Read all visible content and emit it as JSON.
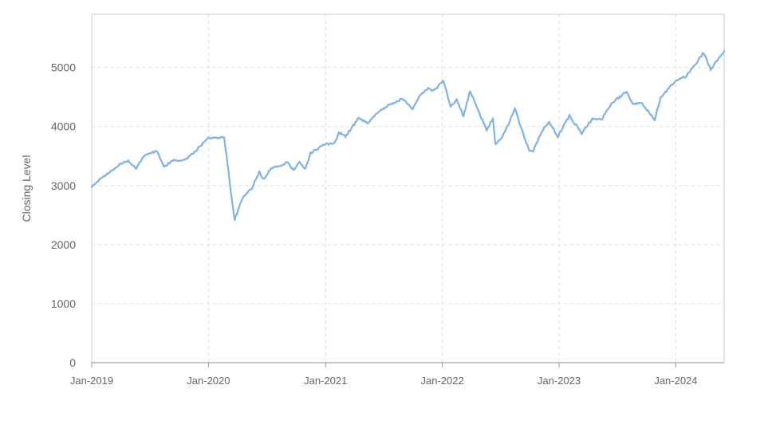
{
  "chart_data": {
    "type": "line",
    "title": "",
    "xlabel": "",
    "ylabel": "Closing Level",
    "xlim": [
      "2019-01-01",
      "2024-05-31"
    ],
    "ylim": [
      0,
      5900
    ],
    "x_ticks": [
      "Jan-2019",
      "Jan-2020",
      "Jan-2021",
      "Jan-2022",
      "Jan-2023",
      "Jan-2024"
    ],
    "y_ticks": [
      "0",
      "1000",
      "2000",
      "3000",
      "4000",
      "5000"
    ],
    "grid": true,
    "legend": "none",
    "line_color": "#7fb2e5",
    "series": [
      {
        "x": [
          "2019-01-01",
          "2019-01-25",
          "2019-02-25",
          "2019-03-25",
          "2019-04-25",
          "2019-05-20",
          "2019-06-15",
          "2019-07-25",
          "2019-08-15",
          "2019-09-15",
          "2019-10-15",
          "2019-11-20",
          "2019-12-31",
          "2020-02-19",
          "2020-03-01",
          "2020-03-10",
          "2020-03-23",
          "2020-04-15",
          "2020-05-15",
          "2020-06-08",
          "2020-06-20",
          "2020-07-15",
          "2020-08-20",
          "2020-09-02",
          "2020-09-23",
          "2020-10-12",
          "2020-10-30",
          "2020-11-15",
          "2020-12-31",
          "2021-01-29",
          "2021-02-12",
          "2021-03-04",
          "2021-04-15",
          "2021-05-12",
          "2021-06-15",
          "2021-07-15",
          "2021-08-30",
          "2021-09-30",
          "2021-10-20",
          "2021-11-18",
          "2021-12-01",
          "2021-12-15",
          "2022-01-03",
          "2022-01-27",
          "2022-02-15",
          "2022-03-08",
          "2022-03-29",
          "2022-04-15",
          "2022-05-20",
          "2022-06-08",
          "2022-06-16",
          "2022-07-15",
          "2022-08-16",
          "2022-09-10",
          "2022-09-30",
          "2022-10-12",
          "2022-11-15",
          "2022-12-01",
          "2022-12-28",
          "2023-02-02",
          "2023-03-13",
          "2023-04-15",
          "2023-05-15",
          "2023-06-15",
          "2023-07-31",
          "2023-08-20",
          "2023-09-15",
          "2023-10-27",
          "2023-11-15",
          "2023-12-31",
          "2024-01-31",
          "2024-03-28",
          "2024-04-19",
          "2024-05-31"
        ],
        "values": [
          2990,
          3100,
          3220,
          3340,
          3420,
          3280,
          3520,
          3580,
          3320,
          3430,
          3420,
          3580,
          3800,
          3820,
          3350,
          2930,
          2420,
          2780,
          2950,
          3230,
          3100,
          3300,
          3350,
          3400,
          3260,
          3400,
          3280,
          3550,
          3700,
          3710,
          3900,
          3830,
          4150,
          4060,
          4250,
          4350,
          4480,
          4300,
          4500,
          4650,
          4600,
          4650,
          4780,
          4350,
          4450,
          4180,
          4600,
          4390,
          3930,
          4150,
          3690,
          3890,
          4300,
          3890,
          3580,
          3580,
          3990,
          4080,
          3830,
          4180,
          3890,
          4130,
          4130,
          4400,
          4590,
          4380,
          4400,
          4120,
          4500,
          4770,
          4850,
          5250,
          4960,
          5280
        ]
      }
    ]
  }
}
